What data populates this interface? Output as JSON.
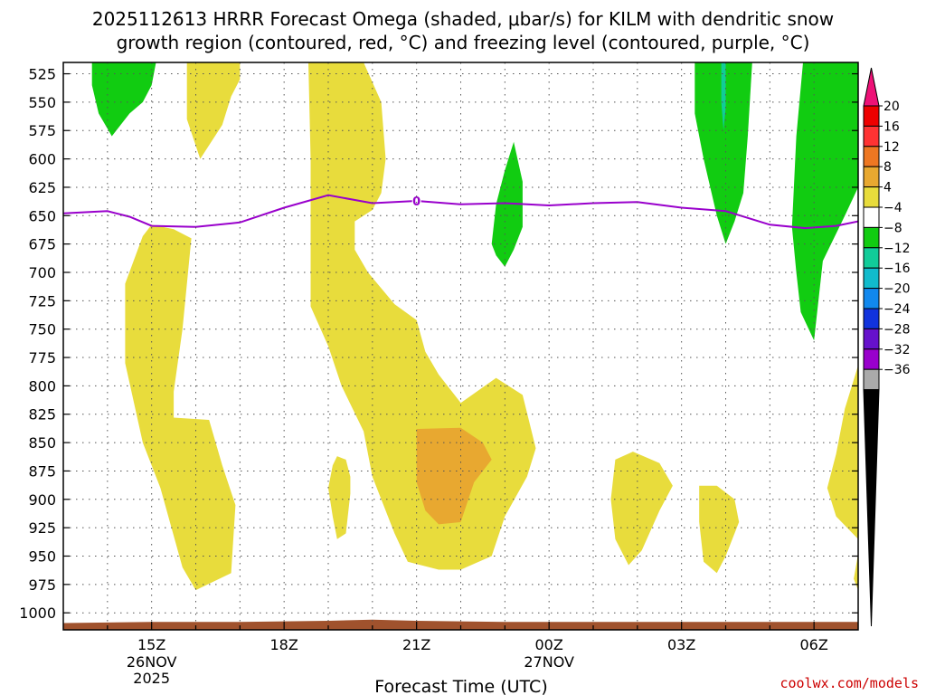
{
  "chart_data": {
    "type": "heatmap",
    "title_line1": "2025112613 HRRR Forecast Omega (shaded, μbar/s) for KILM with dendritic snow",
    "title_line2": "growth region (contoured, red, °C) and freezing level (contoured, purple, °C)",
    "xlabel": "Forecast Time (UTC)",
    "credit": "coolwx.com/models",
    "x_range_hours": [
      13,
      31
    ],
    "y_range_mb": [
      515,
      1015
    ],
    "y_ticks": [
      525,
      550,
      575,
      600,
      625,
      650,
      675,
      700,
      725,
      750,
      775,
      800,
      825,
      850,
      875,
      900,
      925,
      950,
      975,
      1000
    ],
    "x_ticks": [
      {
        "hour": 15,
        "label": "15Z",
        "date": "26NOV",
        "year": "2025"
      },
      {
        "hour": 18,
        "label": "18Z",
        "date": "",
        "year": ""
      },
      {
        "hour": 21,
        "label": "21Z",
        "date": "",
        "year": ""
      },
      {
        "hour": 24,
        "label": "00Z",
        "date": "27NOV",
        "year": ""
      },
      {
        "hour": 27,
        "label": "03Z",
        "date": "",
        "year": ""
      },
      {
        "hour": 30,
        "label": "06Z",
        "date": "",
        "year": ""
      }
    ],
    "colorbar": {
      "labels": [
        "20",
        "16",
        "12",
        "8",
        "4",
        "−4",
        "−8",
        "−12",
        "−16",
        "−20",
        "−24",
        "−28",
        "−32",
        "−36"
      ],
      "colors": [
        "#ee0000",
        "#ff3333",
        "#ee7722",
        "#e8a830",
        "#e8dc3c",
        "#ffffff",
        "#11cc11",
        "#11cc99",
        "#11bbcc",
        "#1188ee",
        "#1133dd",
        "#6611cc",
        "#9900cc",
        "#aaaaaa"
      ],
      "top_arrow_color": "#ee1177",
      "bottom_arrow_color": "#000000"
    },
    "freezing_level": {
      "label": "0",
      "color": "#9900cc",
      "points": [
        [
          13.0,
          648
        ],
        [
          13.5,
          647
        ],
        [
          14.0,
          646
        ],
        [
          14.5,
          651
        ],
        [
          15.0,
          659
        ],
        [
          16.0,
          660
        ],
        [
          17.0,
          656
        ],
        [
          18.0,
          643
        ],
        [
          19.0,
          632
        ],
        [
          20.0,
          639
        ],
        [
          21.0,
          637
        ],
        [
          22.0,
          640
        ],
        [
          23.0,
          639
        ],
        [
          24.0,
          641
        ],
        [
          25.0,
          639
        ],
        [
          26.0,
          638
        ],
        [
          27.0,
          643
        ],
        [
          28.0,
          646
        ],
        [
          29.0,
          658
        ],
        [
          29.8,
          661
        ],
        [
          30.5,
          659
        ],
        [
          31.0,
          655
        ]
      ]
    },
    "terrain": {
      "color": "#a0522d",
      "top": [
        [
          13.0,
          1009
        ],
        [
          15.0,
          1008
        ],
        [
          17.0,
          1008
        ],
        [
          19.0,
          1007
        ],
        [
          20.0,
          1006
        ],
        [
          21.0,
          1007
        ],
        [
          23.0,
          1008
        ],
        [
          25.0,
          1008
        ],
        [
          27.0,
          1008
        ],
        [
          31.0,
          1008
        ]
      ]
    },
    "omega_regions": [
      {
        "value_class": "4",
        "color": "#e8dc3c",
        "poly": [
          [
            14.8,
            668
          ],
          [
            15.0,
            658
          ],
          [
            15.5,
            662
          ],
          [
            15.9,
            670
          ],
          [
            15.7,
            750
          ],
          [
            15.5,
            805
          ],
          [
            15.5,
            828
          ],
          [
            16.3,
            830
          ],
          [
            16.6,
            870
          ],
          [
            16.9,
            905
          ],
          [
            16.8,
            965
          ],
          [
            16.0,
            980
          ],
          [
            15.7,
            960
          ],
          [
            15.2,
            890
          ],
          [
            14.8,
            850
          ],
          [
            14.4,
            780
          ],
          [
            14.4,
            710
          ]
        ]
      },
      {
        "value_class": "4",
        "color": "#e8dc3c",
        "poly": [
          [
            15.8,
            515
          ],
          [
            17.0,
            515
          ],
          [
            17.0,
            530
          ],
          [
            16.8,
            545
          ],
          [
            16.6,
            570
          ],
          [
            16.1,
            600
          ],
          [
            15.8,
            565
          ]
        ]
      },
      {
        "value_class": "4",
        "color": "#e8dc3c",
        "poly": [
          [
            18.55,
            515
          ],
          [
            19.8,
            515
          ],
          [
            20.2,
            550
          ],
          [
            20.3,
            600
          ],
          [
            20.2,
            630
          ],
          [
            20.0,
            645
          ],
          [
            19.6,
            655
          ],
          [
            19.6,
            680
          ],
          [
            19.9,
            700
          ],
          [
            20.5,
            728
          ],
          [
            21.0,
            742
          ],
          [
            21.2,
            770
          ],
          [
            21.5,
            790
          ],
          [
            22.0,
            815
          ],
          [
            22.8,
            793
          ],
          [
            23.4,
            808
          ],
          [
            23.7,
            855
          ],
          [
            23.5,
            880
          ],
          [
            23.0,
            915
          ],
          [
            22.7,
            950
          ],
          [
            22.0,
            962
          ],
          [
            21.5,
            962
          ],
          [
            20.8,
            955
          ],
          [
            20.5,
            930
          ],
          [
            20.0,
            880
          ],
          [
            19.8,
            840
          ],
          [
            19.3,
            800
          ],
          [
            19.0,
            765
          ],
          [
            18.6,
            730
          ],
          [
            18.6,
            600
          ]
        ]
      },
      {
        "value_class": "8",
        "color": "#e8a830",
        "poly": [
          [
            21.0,
            838
          ],
          [
            22.0,
            837
          ],
          [
            22.5,
            850
          ],
          [
            22.7,
            865
          ],
          [
            22.3,
            885
          ],
          [
            22.0,
            920
          ],
          [
            21.5,
            922
          ],
          [
            21.2,
            910
          ],
          [
            21.0,
            885
          ]
        ]
      },
      {
        "value_class": "4",
        "color": "#e8dc3c",
        "poly": [
          [
            19.2,
            862
          ],
          [
            19.4,
            865
          ],
          [
            19.5,
            880
          ],
          [
            19.5,
            895
          ],
          [
            19.4,
            930
          ],
          [
            19.2,
            935
          ],
          [
            19.1,
            915
          ],
          [
            19.0,
            890
          ],
          [
            19.1,
            870
          ]
        ]
      },
      {
        "value_class": "4",
        "color": "#e8dc3c",
        "poly": [
          [
            25.5,
            865
          ],
          [
            25.9,
            858
          ],
          [
            26.5,
            868
          ],
          [
            26.8,
            888
          ],
          [
            26.5,
            910
          ],
          [
            26.1,
            945
          ],
          [
            25.8,
            958
          ],
          [
            25.5,
            935
          ],
          [
            25.4,
            900
          ]
        ]
      },
      {
        "value_class": "4",
        "color": "#e8dc3c",
        "poly": [
          [
            27.4,
            888
          ],
          [
            27.8,
            888
          ],
          [
            28.2,
            900
          ],
          [
            28.3,
            920
          ],
          [
            28.0,
            950
          ],
          [
            27.8,
            965
          ],
          [
            27.5,
            955
          ],
          [
            27.4,
            920
          ]
        ]
      },
      {
        "value_class": "4",
        "color": "#e8dc3c",
        "poly": [
          [
            31.0,
            782
          ],
          [
            30.7,
            820
          ],
          [
            30.5,
            860
          ],
          [
            30.3,
            890
          ],
          [
            30.5,
            915
          ],
          [
            31.0,
            935
          ]
        ]
      },
      {
        "value_class": "4",
        "color": "#e8dc3c",
        "poly": [
          [
            31.0,
            948
          ],
          [
            30.9,
            970
          ],
          [
            31.0,
            980
          ]
        ]
      },
      {
        "value_class": "-4",
        "color": "#11cc11",
        "poly": [
          [
            13.65,
            515
          ],
          [
            15.1,
            515
          ],
          [
            15.0,
            535
          ],
          [
            14.8,
            550
          ],
          [
            14.5,
            560
          ],
          [
            14.1,
            580
          ],
          [
            13.8,
            560
          ],
          [
            13.65,
            535
          ]
        ]
      },
      {
        "value_class": "-4",
        "color": "#11cc11",
        "poly": [
          [
            22.7,
            675
          ],
          [
            22.8,
            640
          ],
          [
            23.0,
            610
          ],
          [
            23.2,
            585
          ],
          [
            23.4,
            620
          ],
          [
            23.4,
            660
          ],
          [
            23.2,
            680
          ],
          [
            23.0,
            695
          ],
          [
            22.8,
            685
          ]
        ]
      },
      {
        "value_class": "-4",
        "color": "#11cc11",
        "poly": [
          [
            27.3,
            515
          ],
          [
            28.6,
            515
          ],
          [
            28.5,
            580
          ],
          [
            28.4,
            630
          ],
          [
            28.2,
            655
          ],
          [
            28.0,
            675
          ],
          [
            27.8,
            650
          ],
          [
            27.5,
            600
          ],
          [
            27.3,
            560
          ]
        ]
      },
      {
        "value_class": "-8",
        "color": "#11cc99",
        "poly": [
          [
            27.9,
            515
          ],
          [
            28.0,
            515
          ],
          [
            28.0,
            555
          ],
          [
            27.95,
            575
          ],
          [
            27.9,
            550
          ]
        ]
      },
      {
        "value_class": "-4",
        "color": "#11cc11",
        "poly": [
          [
            29.75,
            515
          ],
          [
            31.0,
            515
          ],
          [
            31.0,
            625
          ],
          [
            30.7,
            650
          ],
          [
            30.2,
            690
          ],
          [
            30.0,
            760
          ],
          [
            29.7,
            735
          ],
          [
            29.6,
            700
          ],
          [
            29.5,
            660
          ],
          [
            29.6,
            580
          ]
        ]
      }
    ]
  }
}
